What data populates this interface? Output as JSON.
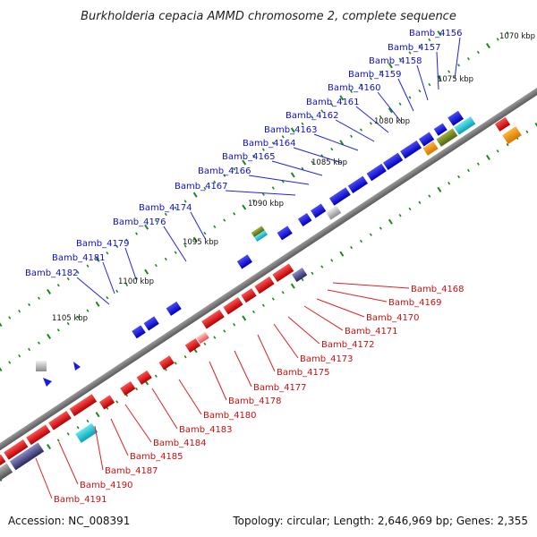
{
  "title": "Burkholderia cepacia AMMD chromosome 2, complete sequence",
  "accession": "Accession: NC_008391",
  "topology": "Topology: circular; Length: 2,646,969 bp; Genes: 2,355",
  "colors": {
    "forward": "#1a1ae6",
    "reverse": "#e61a1a",
    "backbone": "#777777",
    "label_line_forward": "#2222dd",
    "label_line_reverse": "#dd2222",
    "tick": "#1a8a1a"
  },
  "kbp_labels": [
    "1070 kbp",
    "1075 kbp",
    "1080 kbp",
    "1085 kbp",
    "1090 kbp",
    "1095 kbp",
    "1100 kbp",
    "1105 kbp"
  ],
  "forward_labels": [
    "Bamb_4156",
    "Bamb_4157",
    "Bamb_4158",
    "Bamb_4159",
    "Bamb_4160",
    "Bamb_4161",
    "Bamb_4162",
    "Bamb_4163",
    "Bamb_4164",
    "Bamb_4165",
    "Bamb_4166",
    "Bamb_4167",
    "Bamb_4174",
    "Bamb_4176",
    "Bamb_4179",
    "Bamb_4181",
    "Bamb_4182"
  ],
  "reverse_labels": [
    "Bamb_4168",
    "Bamb_4169",
    "Bamb_4170",
    "Bamb_4171",
    "Bamb_4172",
    "Bamb_4173",
    "Bamb_4175",
    "Bamb_4177",
    "Bamb_4178",
    "Bamb_4180",
    "Bamb_4183",
    "Bamb_4184",
    "Bamb_4185",
    "Bamb_4187",
    "Bamb_4190",
    "Bamb_4191"
  ]
}
